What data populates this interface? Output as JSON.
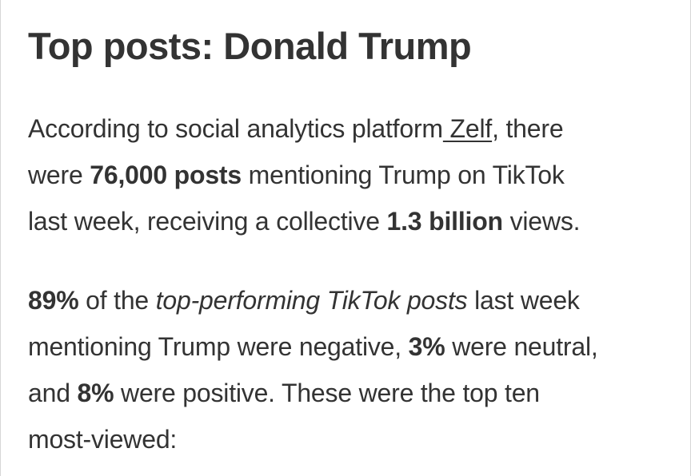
{
  "title": "Top posts: Donald Trump",
  "para1": {
    "line1_a": "According to social analytics platform",
    "link": " Zelf",
    "line1_b": ", there",
    "line2_a": "were ",
    "line2_bold": "76,000 posts",
    "line2_b": " mentioning Trump on TikTok",
    "line3_a": "last week, receiving a collective ",
    "line3_bold": "1.3 billion",
    "line3_b": " views."
  },
  "para2": {
    "line1_bold": "89%",
    "line1_a": " of the ",
    "line1_italic": "top-performing TikTok posts",
    "line1_b": " last week",
    "line2_a": "mentioning Trump were negative, ",
    "line2_bold": "3%",
    "line2_b": " were neutral,",
    "line3_a": "and ",
    "line3_bold": "8%",
    "line3_b": " were positive. These were the top ten",
    "line4": "most-viewed:"
  }
}
